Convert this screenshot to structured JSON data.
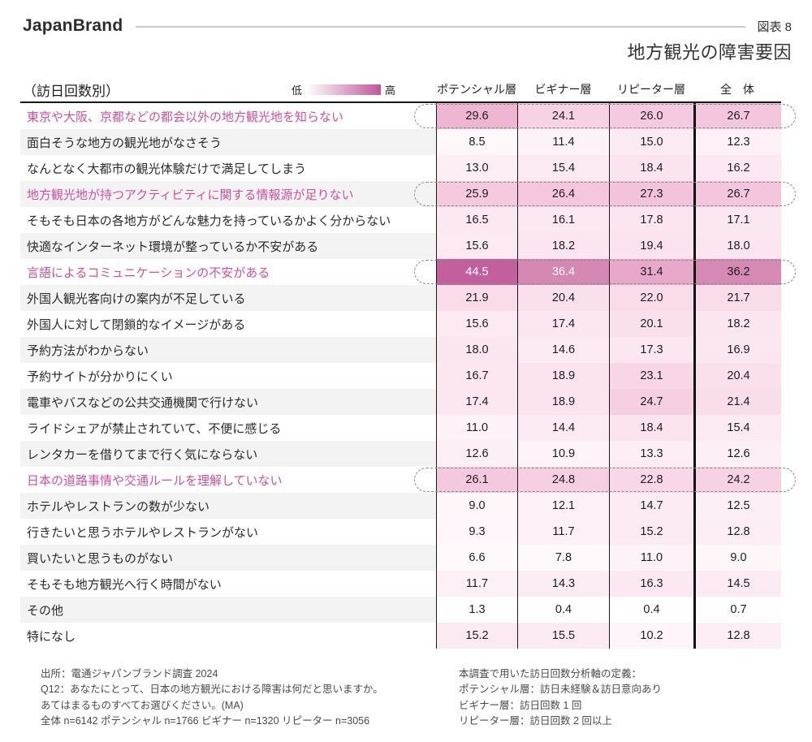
{
  "header": {
    "brand": "JapanBrand",
    "figure_label": "図表 8",
    "title": "地方観光の障害要因"
  },
  "controls": {
    "axis_note": "（訪日回数別）",
    "legend_low": "低",
    "legend_high": "高"
  },
  "chart_data": {
    "type": "heatmap",
    "title": "地方観光の障害要因",
    "figure_label": "図表 8",
    "unit": "%",
    "legend": {
      "low": "低",
      "high": "高",
      "scale_min": 0,
      "scale_max": 45
    },
    "columns": [
      "ポテンシャル層",
      "ビギナー層",
      "リピーター層",
      "全　体"
    ],
    "rows": [
      {
        "label": "東京や大阪、京都などの都会以外の地方観光地を知らない",
        "values": [
          29.6,
          24.1,
          26.0,
          26.7
        ],
        "highlighted": true
      },
      {
        "label": "面白そうな地方の観光地がなさそう",
        "values": [
          8.5,
          11.4,
          15.0,
          12.3
        ],
        "highlighted": false
      },
      {
        "label": "なんとなく大都市の観光体験だけで満足してしまう",
        "values": [
          13.0,
          15.4,
          18.4,
          16.2
        ],
        "highlighted": false
      },
      {
        "label": "地方観光地が持つアクティビティに関する情報源が足りない",
        "values": [
          25.9,
          26.4,
          27.3,
          26.7
        ],
        "highlighted": true
      },
      {
        "label": "そもそも日本の各地方がどんな魅力を持っているかよく分からない",
        "values": [
          16.5,
          16.1,
          17.8,
          17.1
        ],
        "highlighted": false
      },
      {
        "label": "快適なインターネット環境が整っているか不安がある",
        "values": [
          15.6,
          18.2,
          19.4,
          18.0
        ],
        "highlighted": false
      },
      {
        "label": "言語によるコミュニケーションの不安がある",
        "values": [
          44.5,
          36.4,
          31.4,
          36.2
        ],
        "highlighted": true
      },
      {
        "label": "外国人観光客向けの案内が不足している",
        "values": [
          21.9,
          20.4,
          22.0,
          21.7
        ],
        "highlighted": false
      },
      {
        "label": "外国人に対して閉鎖的なイメージがある",
        "values": [
          15.6,
          17.4,
          20.1,
          18.2
        ],
        "highlighted": false
      },
      {
        "label": "予約方法がわからない",
        "values": [
          18.0,
          14.6,
          17.3,
          16.9
        ],
        "highlighted": false
      },
      {
        "label": "予約サイトが分かりにくい",
        "values": [
          16.7,
          18.9,
          23.1,
          20.4
        ],
        "highlighted": false
      },
      {
        "label": "電車やバスなどの公共交通機関で行けない",
        "values": [
          17.4,
          18.9,
          24.7,
          21.4
        ],
        "highlighted": false
      },
      {
        "label": "ライドシェアが禁止されていて、不便に感じる",
        "values": [
          11.0,
          14.4,
          18.4,
          15.4
        ],
        "highlighted": false
      },
      {
        "label": "レンタカーを借りてまで行く気にならない",
        "values": [
          12.6,
          10.9,
          13.3,
          12.6
        ],
        "highlighted": false
      },
      {
        "label": "日本の道路事情や交通ルールを理解していない",
        "values": [
          26.1,
          24.8,
          22.8,
          24.2
        ],
        "highlighted": true
      },
      {
        "label": "ホテルやレストランの数が少ない",
        "values": [
          9.0,
          12.1,
          14.7,
          12.5
        ],
        "highlighted": false
      },
      {
        "label": "行きたいと思うホテルやレストランがない",
        "values": [
          9.3,
          11.7,
          15.2,
          12.8
        ],
        "highlighted": false
      },
      {
        "label": "買いたいと思うものがない",
        "values": [
          6.6,
          7.8,
          11.0,
          9.0
        ],
        "highlighted": false
      },
      {
        "label": "そもそも地方観光へ行く時間がない",
        "values": [
          11.7,
          14.3,
          16.3,
          14.5
        ],
        "highlighted": false
      },
      {
        "label": "その他",
        "values": [
          1.3,
          0.4,
          0.4,
          0.7
        ],
        "highlighted": false
      },
      {
        "label": "特になし",
        "values": [
          15.2,
          15.5,
          10.2,
          12.8
        ],
        "highlighted": false
      }
    ]
  },
  "footnotes": {
    "left": [
      "出所：電通ジャパンブランド調査 2024",
      "Q12：あなたにとって、日本の地方観光における障害は何だと思いますか。",
      "あてはまるものすべてお選びください。(MA)",
      "全体 n=6142  ポテンシャル n=1766  ビギナー n=1320  リピーター n=3056"
    ],
    "right": [
      "本調査で用いた訪日回数分析軸の定義：",
      "ポテンシャル層：訪日未経験＆訪日意向あり",
      "ビギナー層：訪日回数 1 回",
      "リピーター層：訪日回数 2 回以上"
    ]
  },
  "colors": {
    "highlight_text": "#d04f9c",
    "stripe": "#f3f3f3",
    "legend_gradient_end": "#c0569a",
    "white_text_min": 36.3,
    "heat_stops": [
      [
        0,
        "#ffffff"
      ],
      [
        8.5,
        "#fef8fb"
      ],
      [
        13,
        "#fdeef5"
      ],
      [
        18,
        "#fbe5f0"
      ],
      [
        22,
        "#f9dbea"
      ],
      [
        25,
        "#f6cee2"
      ],
      [
        27,
        "#f3c4dc"
      ],
      [
        30,
        "#eeb4d2"
      ],
      [
        32,
        "#e4a3c7"
      ],
      [
        36.5,
        "#d687b5"
      ],
      [
        45,
        "#c35d9c"
      ]
    ]
  }
}
